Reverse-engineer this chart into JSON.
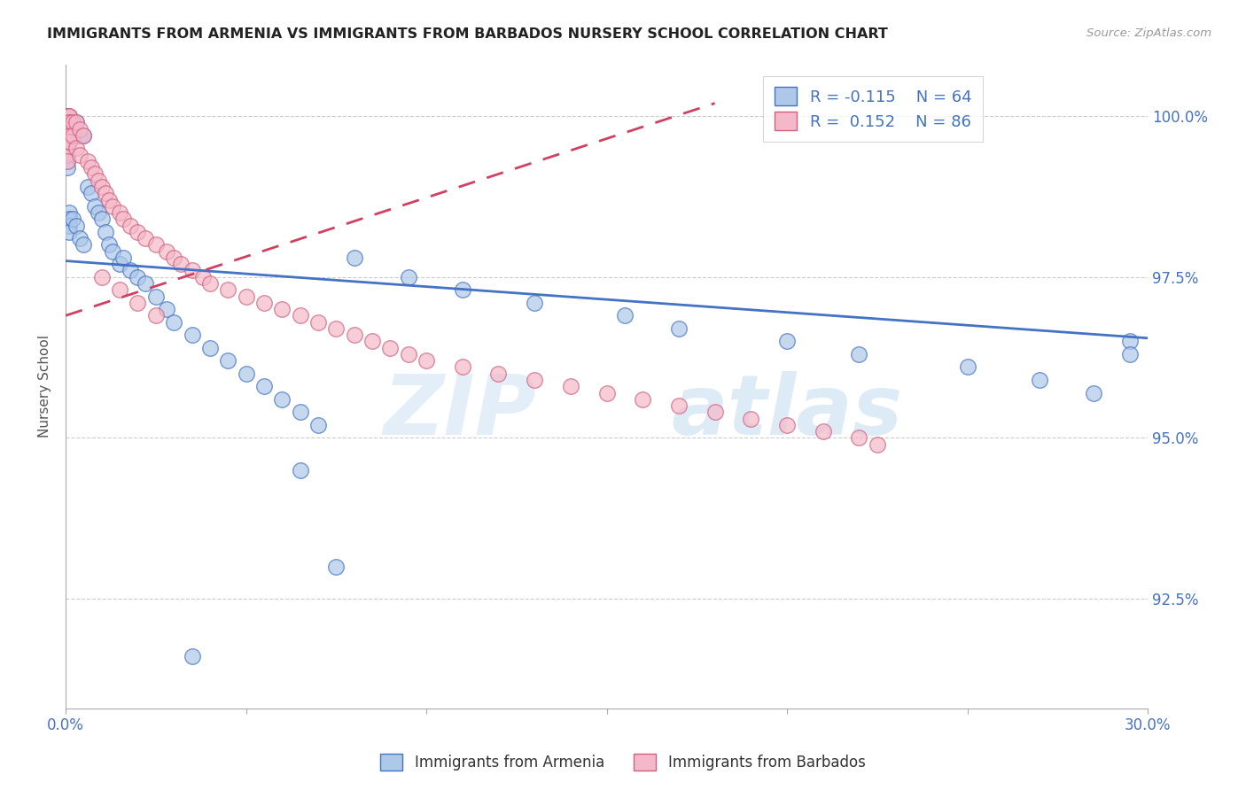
{
  "title": "IMMIGRANTS FROM ARMENIA VS IMMIGRANTS FROM BARBADOS NURSERY SCHOOL CORRELATION CHART",
  "source": "Source: ZipAtlas.com",
  "ylabel": "Nursery School",
  "ytick_labels": [
    "92.5%",
    "95.0%",
    "97.5%",
    "100.0%"
  ],
  "ytick_values": [
    0.925,
    0.95,
    0.975,
    1.0
  ],
  "xlim": [
    0.0,
    0.3
  ],
  "ylim": [
    0.908,
    1.008
  ],
  "legend_r1": "R = -0.115",
  "legend_n1": "N = 64",
  "legend_r2": "R =  0.152",
  "legend_n2": "N = 86",
  "color_armenia": "#adc8e8",
  "color_barbados": "#f5b8c8",
  "line_color_armenia": "#4472c4",
  "line_color_barbados": "#d04060",
  "watermark_zip": "ZIP",
  "watermark_atlas": "atlas",
  "armenia_x": [
    0.0005,
    0.0005,
    0.0005,
    0.0005,
    0.0005,
    0.0005,
    0.0005,
    0.0005,
    0.001,
    0.001,
    0.001,
    0.001,
    0.001,
    0.001,
    0.001,
    0.001,
    0.002,
    0.002,
    0.003,
    0.003,
    0.004,
    0.004,
    0.005,
    0.005,
    0.006,
    0.007,
    0.008,
    0.009,
    0.01,
    0.011,
    0.012,
    0.013,
    0.015,
    0.016,
    0.018,
    0.02,
    0.022,
    0.025,
    0.028,
    0.03,
    0.035,
    0.04,
    0.045,
    0.05,
    0.055,
    0.06,
    0.065,
    0.07,
    0.08,
    0.095,
    0.11,
    0.13,
    0.155,
    0.17,
    0.2,
    0.22,
    0.25,
    0.27,
    0.285,
    0.295,
    0.295,
    0.065,
    0.075,
    0.035
  ],
  "armenia_y": [
    0.999,
    0.998,
    0.997,
    0.996,
    0.995,
    0.994,
    0.993,
    0.992,
    0.999,
    0.998,
    0.997,
    0.996,
    0.985,
    0.984,
    0.983,
    0.982,
    0.998,
    0.984,
    0.999,
    0.983,
    0.997,
    0.981,
    0.997,
    0.98,
    0.989,
    0.988,
    0.986,
    0.985,
    0.984,
    0.982,
    0.98,
    0.979,
    0.977,
    0.978,
    0.976,
    0.975,
    0.974,
    0.972,
    0.97,
    0.968,
    0.966,
    0.964,
    0.962,
    0.96,
    0.958,
    0.956,
    0.954,
    0.952,
    0.978,
    0.975,
    0.973,
    0.971,
    0.969,
    0.967,
    0.965,
    0.963,
    0.961,
    0.959,
    0.957,
    0.965,
    0.963,
    0.945,
    0.93,
    0.916
  ],
  "barbados_x": [
    0.0005,
    0.0005,
    0.0005,
    0.0005,
    0.0005,
    0.0005,
    0.0005,
    0.0005,
    0.0005,
    0.0005,
    0.0005,
    0.0005,
    0.0005,
    0.0005,
    0.0005,
    0.0005,
    0.0005,
    0.0005,
    0.0005,
    0.0005,
    0.001,
    0.001,
    0.001,
    0.001,
    0.001,
    0.001,
    0.001,
    0.001,
    0.001,
    0.001,
    0.002,
    0.002,
    0.003,
    0.003,
    0.004,
    0.004,
    0.005,
    0.006,
    0.007,
    0.008,
    0.009,
    0.01,
    0.011,
    0.012,
    0.013,
    0.015,
    0.016,
    0.018,
    0.02,
    0.022,
    0.025,
    0.028,
    0.03,
    0.032,
    0.035,
    0.038,
    0.04,
    0.045,
    0.05,
    0.055,
    0.06,
    0.065,
    0.07,
    0.075,
    0.08,
    0.085,
    0.09,
    0.095,
    0.1,
    0.11,
    0.12,
    0.13,
    0.14,
    0.15,
    0.16,
    0.17,
    0.18,
    0.19,
    0.2,
    0.21,
    0.22,
    0.225,
    0.01,
    0.015,
    0.02,
    0.025
  ],
  "barbados_y": [
    1.0,
    1.0,
    1.0,
    1.0,
    0.999,
    0.999,
    0.999,
    0.999,
    0.998,
    0.998,
    0.998,
    0.998,
    0.997,
    0.997,
    0.996,
    0.996,
    0.995,
    0.995,
    0.994,
    0.993,
    1.0,
    1.0,
    0.999,
    0.999,
    0.998,
    0.998,
    0.997,
    0.997,
    0.996,
    0.996,
    0.999,
    0.997,
    0.999,
    0.995,
    0.998,
    0.994,
    0.997,
    0.993,
    0.992,
    0.991,
    0.99,
    0.989,
    0.988,
    0.987,
    0.986,
    0.985,
    0.984,
    0.983,
    0.982,
    0.981,
    0.98,
    0.979,
    0.978,
    0.977,
    0.976,
    0.975,
    0.974,
    0.973,
    0.972,
    0.971,
    0.97,
    0.969,
    0.968,
    0.967,
    0.966,
    0.965,
    0.964,
    0.963,
    0.962,
    0.961,
    0.96,
    0.959,
    0.958,
    0.957,
    0.956,
    0.955,
    0.954,
    0.953,
    0.952,
    0.951,
    0.95,
    0.949,
    0.975,
    0.973,
    0.971,
    0.969
  ],
  "arm_line_x": [
    0.0,
    0.3
  ],
  "arm_line_y": [
    0.9775,
    0.9655
  ],
  "bar_line_x": [
    0.0,
    0.18
  ],
  "bar_line_y": [
    0.969,
    1.002
  ]
}
